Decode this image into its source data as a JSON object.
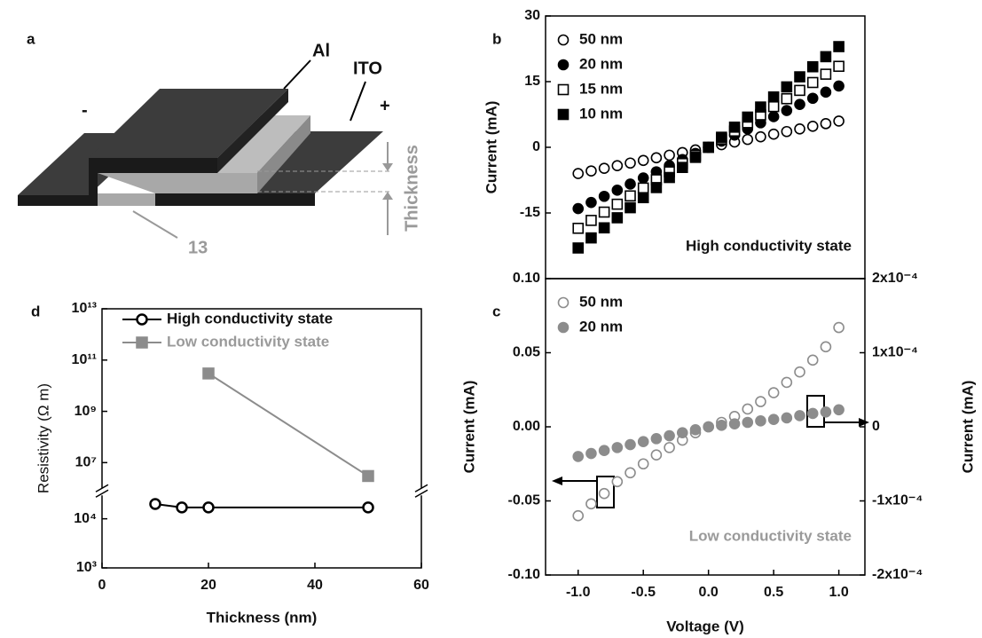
{
  "diagram": {
    "panel": "a",
    "top_electrode": "Al",
    "bottom_electrode": "ITO",
    "minus": "-",
    "plus": "+",
    "thickness": "Thickness",
    "material": "13"
  },
  "chart_data": [
    {
      "type": "scatter",
      "panel": "b",
      "y_label": "Current (mA)",
      "annotation": "High conductivity state",
      "xlim": [
        -1.25,
        1.2
      ],
      "ylim": [
        -30,
        30
      ],
      "yticks": [
        -15,
        0,
        15,
        30
      ],
      "legend": "upper left",
      "x": [
        -1.0,
        -0.9,
        -0.8,
        -0.7,
        -0.6,
        -0.5,
        -0.4,
        -0.3,
        -0.2,
        -0.1,
        0.0,
        0.1,
        0.2,
        0.3,
        0.4,
        0.5,
        0.6,
        0.7,
        0.8,
        0.9,
        1.0
      ],
      "series": [
        {
          "name": "50 nm",
          "color": "#000000",
          "marker": "open-circle",
          "values": [
            -6,
            -5.4,
            -4.8,
            -4.2,
            -3.6,
            -3,
            -2.4,
            -1.8,
            -1.2,
            -0.6,
            0,
            0.6,
            1.2,
            1.8,
            2.4,
            3,
            3.6,
            4.2,
            4.8,
            5.4,
            6
          ]
        },
        {
          "name": "20 nm",
          "color": "#000000",
          "marker": "filled-circle",
          "values": [
            -14,
            -12.6,
            -11.2,
            -9.8,
            -8.4,
            -7,
            -5.6,
            -4.2,
            -2.8,
            -1.4,
            0,
            1.4,
            2.8,
            4.2,
            5.6,
            7,
            8.4,
            9.8,
            11.2,
            12.6,
            14
          ]
        },
        {
          "name": "15 nm",
          "color": "#000000",
          "marker": "open-square",
          "values": [
            -18.5,
            -16.7,
            -14.8,
            -13,
            -11.1,
            -9.3,
            -7.4,
            -5.6,
            -3.7,
            -1.9,
            0,
            1.9,
            3.7,
            5.6,
            7.4,
            9.3,
            11.1,
            13,
            14.8,
            16.7,
            18.5
          ]
        },
        {
          "name": "10 nm",
          "color": "#000000",
          "marker": "filled-square",
          "values": [
            -23,
            -20.7,
            -18.4,
            -16.1,
            -13.8,
            -11.5,
            -9.2,
            -6.9,
            -4.6,
            -2.3,
            0,
            2.3,
            4.6,
            6.9,
            9.2,
            11.5,
            13.8,
            16.1,
            18.4,
            20.7,
            23
          ]
        }
      ]
    },
    {
      "type": "scatter",
      "panel": "c",
      "x_label": "Voltage (V)",
      "y_label": "Current (mA)",
      "y2_label": "Current (mA)",
      "annotation": "Low conductivity state",
      "xlim": [
        -1.25,
        1.2
      ],
      "xticks": [
        {
          "value": -1.0,
          "label": "-1.0"
        },
        {
          "value": -0.5,
          "label": "-0.5"
        },
        {
          "value": 0.0,
          "label": "0.0"
        },
        {
          "value": 0.5,
          "label": "0.5"
        },
        {
          "value": 1.0,
          "label": "1.0"
        }
      ],
      "ylim": [
        -0.1,
        0.1
      ],
      "yticks": [
        {
          "value": -0.1,
          "label": "-0.10"
        },
        {
          "value": -0.05,
          "label": "-0.05"
        },
        {
          "value": 0,
          "label": "0.00"
        },
        {
          "value": 0.05,
          "label": "0.05"
        },
        {
          "value": 0.1,
          "label": "0.10"
        }
      ],
      "y2lim": [
        -0.0002,
        0.0002
      ],
      "y2ticks": [
        {
          "value": -0.0002,
          "label": "-2x10⁻⁴"
        },
        {
          "value": -0.0001,
          "label": "-1x10⁻⁴"
        },
        0,
        {
          "value": 0.0001,
          "label": "1x10⁻⁴"
        },
        {
          "value": 0.0002,
          "label": "2x10⁻⁴"
        }
      ],
      "legend": "upper left",
      "x": [
        -1.0,
        -0.9,
        -0.8,
        -0.7,
        -0.6,
        -0.5,
        -0.4,
        -0.3,
        -0.2,
        -0.1,
        0.0,
        0.1,
        0.2,
        0.3,
        0.4,
        0.5,
        0.6,
        0.7,
        0.8,
        0.9,
        1.0
      ],
      "series": [
        {
          "name": "50 nm",
          "color": "#8c8c8c",
          "marker": "open-circle",
          "values": [
            -0.06,
            -0.052,
            -0.045,
            -0.037,
            -0.031,
            -0.025,
            -0.019,
            -0.014,
            -0.009,
            -0.004,
            0,
            0.003,
            0.007,
            0.012,
            0.017,
            0.023,
            0.03,
            0.037,
            0.045,
            0.054,
            0.067
          ]
        },
        {
          "name": "20 nm",
          "color": "#8c8c8c",
          "marker": "filled-circle",
          "axis": "y2",
          "values": [
            -4e-05,
            -3.6e-05,
            -3.2e-05,
            -2.8e-05,
            -2.4e-05,
            -2e-05,
            -1.6e-05,
            -1.2e-05,
            -8e-06,
            -4e-06,
            0,
            2e-06,
            4e-06,
            6e-06,
            8e-06,
            1e-05,
            1.2e-05,
            1.5e-05,
            1.8e-05,
            2e-05,
            2.3e-05
          ]
        }
      ]
    },
    {
      "type": "line",
      "panel": "d",
      "x_label": "Thickness (nm)",
      "y_label": "Resistivity (Ω m)",
      "xlim": [
        0,
        60
      ],
      "xticks": [
        0,
        20,
        40,
        60
      ],
      "ylog": true,
      "ylim": [
        1000,
        10000000000000.0
      ],
      "ybreak": [
        30000,
        1000000
      ],
      "yticks": [
        {
          "value": 1000,
          "label": "10³"
        },
        {
          "value": 10000,
          "label": "10⁴"
        },
        {
          "value": 10000000.0,
          "label": "10⁷"
        },
        {
          "value": 1000000000.0,
          "label": "10⁹"
        },
        {
          "value": 100000000000.0,
          "label": "10¹¹"
        },
        {
          "value": 10000000000000.0,
          "label": "10¹³"
        }
      ],
      "legend": "upper left",
      "series": [
        {
          "name": "High conductivity state",
          "color": "#000000",
          "marker": "open-circle",
          "x": [
            10,
            15,
            20,
            50
          ],
          "values": [
            20000,
            17000,
            17000,
            17000
          ]
        },
        {
          "name": "Low conductivity state",
          "color": "#8c8c8c",
          "marker": "filled-square",
          "x": [
            20,
            50
          ],
          "values": [
            30000000000,
            3000000
          ]
        }
      ]
    }
  ]
}
